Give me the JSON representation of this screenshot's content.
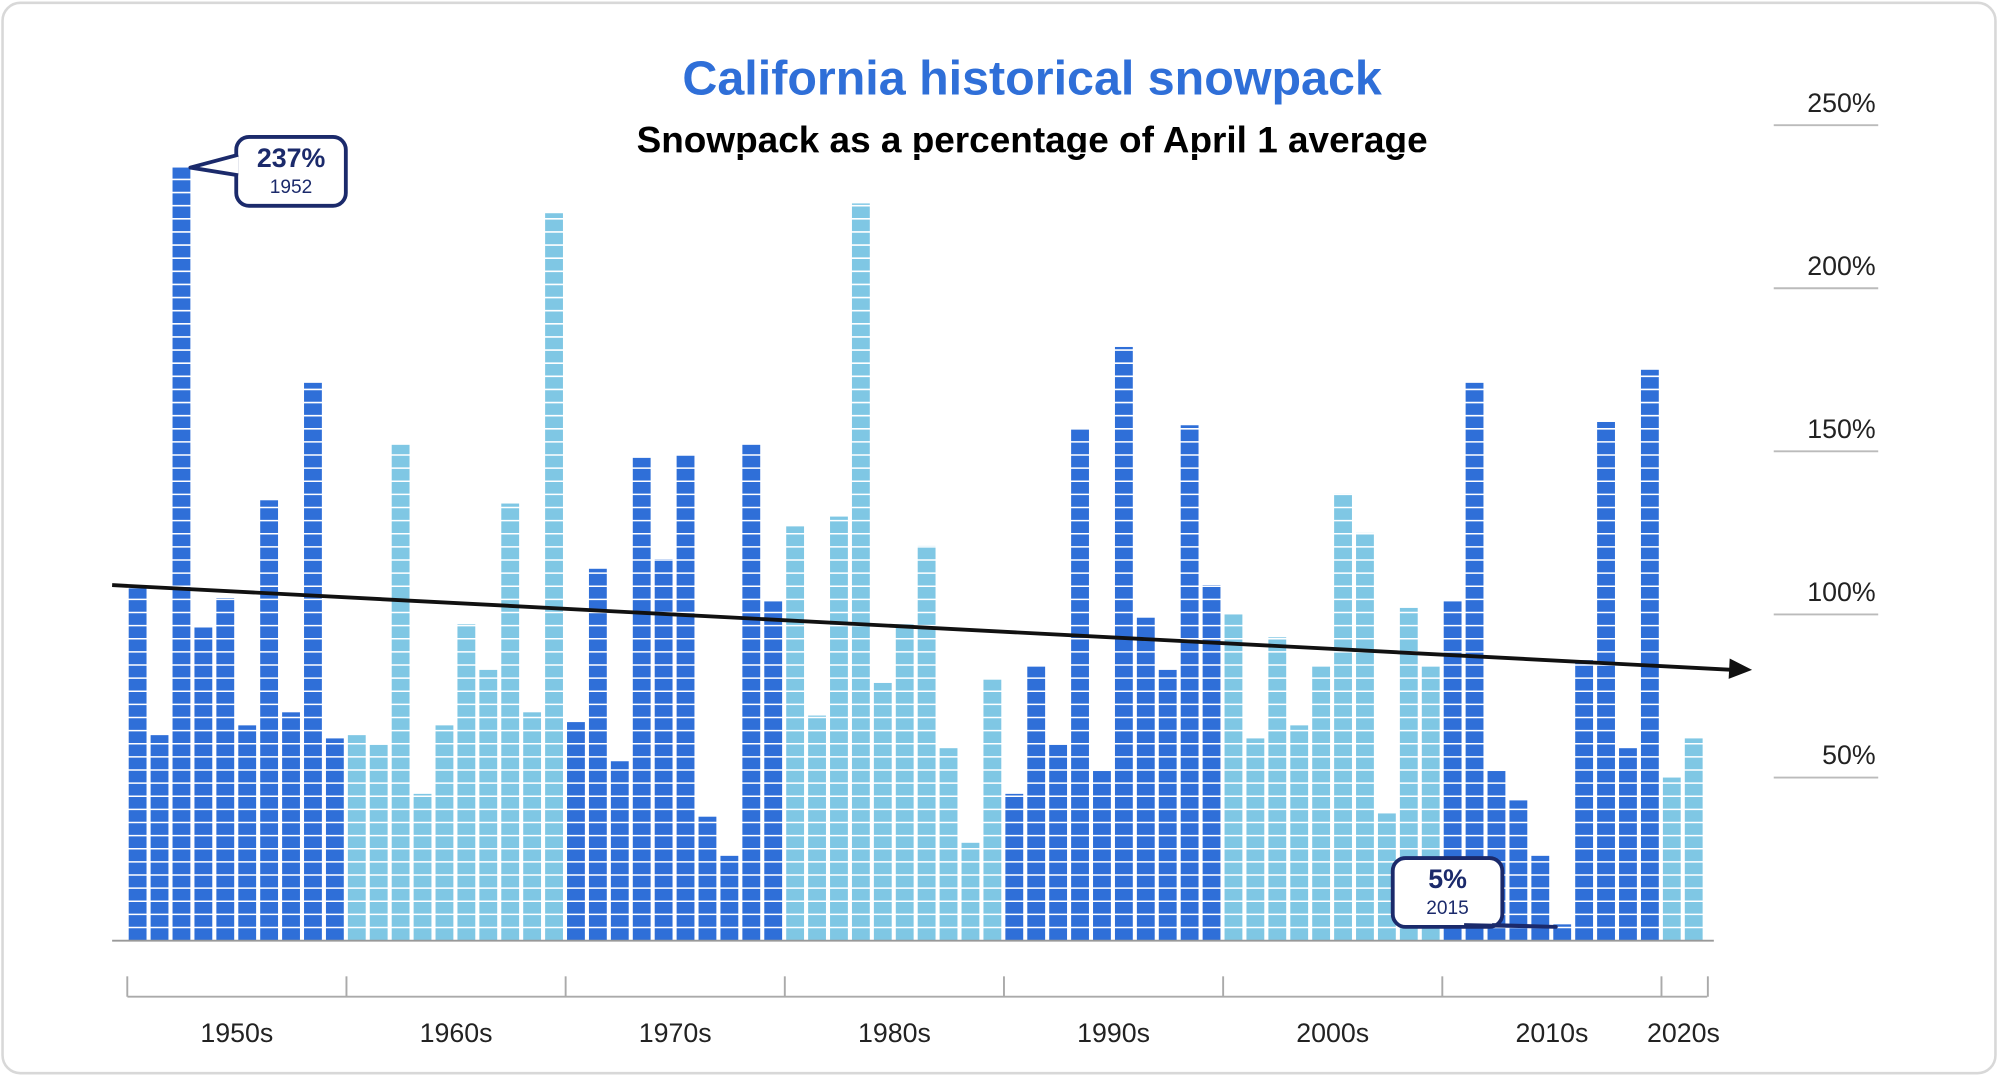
{
  "chart_data": {
    "type": "bar",
    "title": "California historical snowpack",
    "subtitle": "Snowpack as a percentage of April 1 average",
    "categories": [
      null,
      null,
      null,
      null,
      null,
      null,
      null,
      null,
      null,
      null,
      null,
      null,
      null,
      null,
      null,
      null,
      null,
      null,
      null,
      null,
      null,
      null,
      null,
      null,
      null,
      null,
      null,
      null,
      null,
      null,
      null,
      null,
      null,
      null,
      null,
      null,
      null,
      null,
      null,
      null,
      null,
      null,
      null,
      null,
      null,
      null,
      null,
      null,
      null,
      null,
      null,
      null,
      null,
      null,
      null,
      null,
      null,
      null,
      null,
      null,
      null,
      null,
      null,
      null,
      null,
      null,
      null,
      null,
      null,
      null,
      null,
      null
    ],
    "values": [
      108,
      63,
      237,
      96,
      105,
      66,
      135,
      70,
      171,
      62,
      63,
      60,
      152,
      45,
      66,
      97,
      83,
      134,
      70,
      223,
      67,
      114,
      55,
      148,
      117,
      149,
      38,
      26,
      152,
      104,
      127,
      69,
      130,
      226,
      79,
      97,
      121,
      59,
      30,
      80,
      45,
      84,
      60,
      157,
      52,
      182,
      99,
      83,
      158,
      109,
      100,
      62,
      93,
      66,
      84,
      137,
      125,
      39,
      102,
      84,
      104,
      171,
      52,
      43,
      26,
      5,
      86,
      159,
      59,
      175,
      50,
      62
    ],
    "decades": [
      "1950s",
      "1960s",
      "1970s",
      "1980s",
      "1990s",
      "2000s",
      "2010s",
      "2020s"
    ],
    "decade_colors": [
      "#2f6fd8",
      "#7fc7e4"
    ],
    "trend": {
      "values": [
        109,
        83
      ],
      "color": "#111111"
    },
    "annotations": [
      {
        "value": 237,
        "label": "237%",
        "year": "1952"
      },
      {
        "value": 5,
        "label": "5%",
        "year": "2015"
      }
    ],
    "ylim": [
      0,
      250
    ],
    "yticks": [
      {
        "value": 50,
        "label": "50%"
      },
      {
        "value": 100,
        "label": "100%"
      },
      {
        "value": 150,
        "label": "150%"
      },
      {
        "value": 200,
        "label": "200%"
      },
      {
        "value": 250,
        "label": "250%"
      }
    ],
    "grid": true
  }
}
